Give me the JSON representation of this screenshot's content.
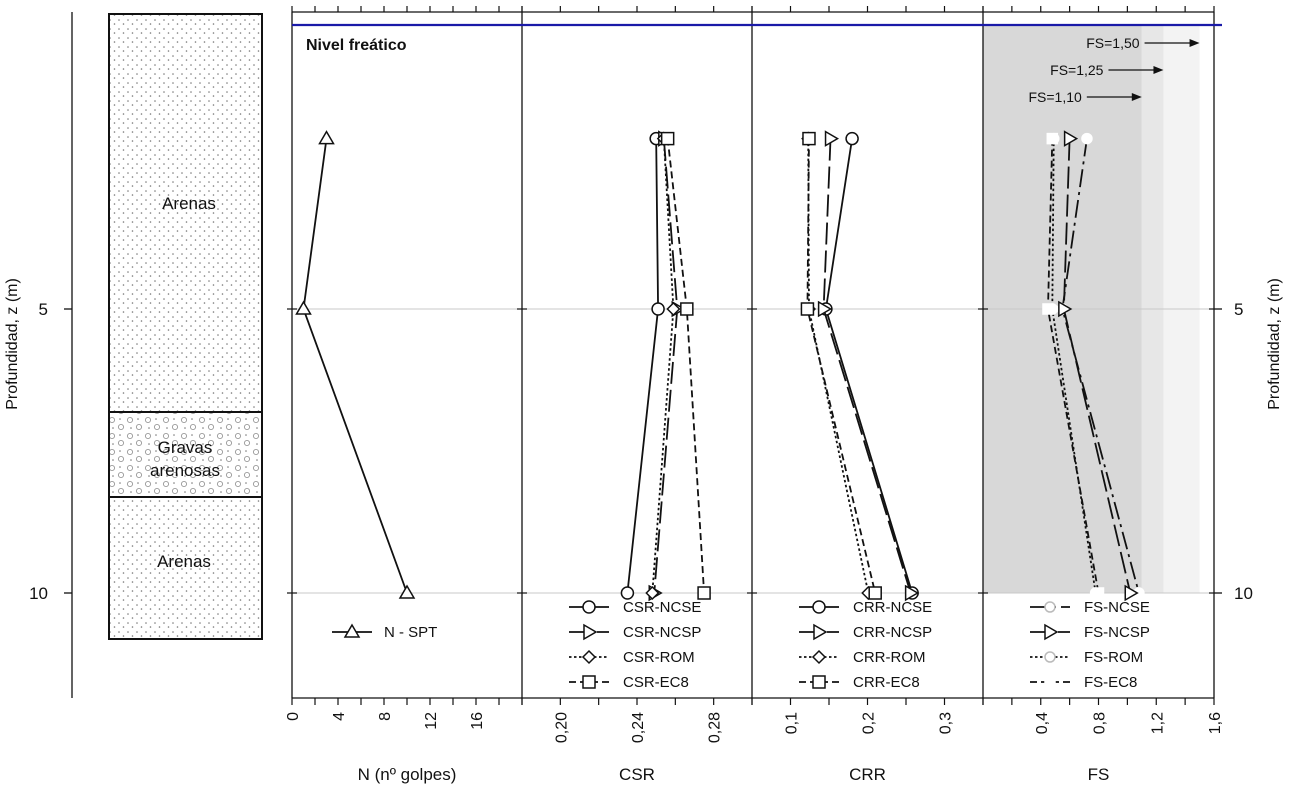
{
  "strings": {
    "ylabel_left": "Profundidad, z (m)",
    "ylabel_right": "Profundidad, z (m)",
    "nivel_freatico": "Nivel freático",
    "strata": [
      "Arenas",
      "Gravas",
      "arenosas",
      "Arenas"
    ]
  },
  "colors": {
    "water_table": "#1a1aa8",
    "fs_zone_dark": "#d8d8d8",
    "fs_zone_mid": "#e7e7e7",
    "fs_zone_light": "#f3f3f3",
    "grid": "#c8c8c8",
    "ink": "#111111"
  },
  "chart_data": [
    {
      "type": "line",
      "panel": "N",
      "xlabel": "N (nº golpes)",
      "xlim": [
        0,
        20
      ],
      "ticks": [
        "0",
        "4",
        "8",
        "12",
        "16"
      ],
      "tick_values": [
        0,
        4,
        8,
        12,
        16
      ],
      "depth_ticks": [
        "5",
        "10"
      ],
      "series": [
        {
          "name": "N - SPT",
          "marker": "triangle",
          "dash": "solid",
          "x": [
            3,
            1,
            10
          ],
          "z": [
            2.0,
            5.0,
            10.0
          ]
        }
      ]
    },
    {
      "type": "line",
      "panel": "CSR",
      "xlabel": "CSR",
      "xlim": [
        0.18,
        0.3
      ],
      "ticks": [
        "0,20",
        "0,24",
        "0,28"
      ],
      "tick_values": [
        0.2,
        0.24,
        0.28
      ],
      "series": [
        {
          "name": "CSR-NCSE",
          "marker": "circle",
          "dash": "solid",
          "x": [
            0.25,
            0.251,
            0.235
          ],
          "z": [
            2.0,
            5.0,
            10.0
          ]
        },
        {
          "name": "CSR-NCSP",
          "marker": "tri-right",
          "dash": "long",
          "x": [
            0.254,
            0.261,
            0.249
          ],
          "z": [
            2.0,
            5.0,
            10.0
          ]
        },
        {
          "name": "CSR-ROM",
          "marker": "diamond",
          "dash": "dot",
          "x": [
            0.254,
            0.259,
            0.248
          ],
          "z": [
            2.0,
            5.0,
            10.0
          ]
        },
        {
          "name": "CSR-EC8",
          "marker": "square",
          "dash": "dash",
          "x": [
            0.256,
            0.266,
            0.275
          ],
          "z": [
            2.0,
            5.0,
            10.0
          ]
        }
      ]
    },
    {
      "type": "line",
      "panel": "CRR",
      "xlabel": "CRR",
      "xlim": [
        0.05,
        0.35
      ],
      "ticks": [
        "0,1",
        "0,2",
        "0,3"
      ],
      "tick_values": [
        0.1,
        0.2,
        0.3
      ],
      "series": [
        {
          "name": "CRR-NCSE",
          "marker": "circle",
          "dash": "solid",
          "x": [
            0.18,
            0.146,
            0.258
          ],
          "z": [
            2.0,
            5.0,
            10.0
          ]
        },
        {
          "name": "CRR-NCSP",
          "marker": "tri-right",
          "dash": "long",
          "x": [
            0.152,
            0.143,
            0.256
          ],
          "z": [
            2.0,
            5.0,
            10.0
          ]
        },
        {
          "name": "CRR-ROM",
          "marker": "diamond",
          "dash": "dot",
          "x": [
            0.123,
            0.124,
            0.201
          ],
          "z": [
            2.0,
            5.0,
            10.0
          ]
        },
        {
          "name": "CRR-EC8",
          "marker": "square",
          "dash": "dash",
          "x": [
            0.124,
            0.122,
            0.21
          ],
          "z": [
            2.0,
            5.0,
            10.0
          ]
        }
      ]
    },
    {
      "type": "line",
      "panel": "FS",
      "xlabel": "FS",
      "xlim": [
        0.0,
        1.6
      ],
      "ticks": [
        "0,4",
        "0,8",
        "1,2",
        "1,6"
      ],
      "tick_values": [
        0.4,
        0.8,
        1.2,
        1.6
      ],
      "thresholds": [
        {
          "value": 1.1,
          "label": "FS=1,10"
        },
        {
          "value": 1.25,
          "label": "FS=1,25"
        },
        {
          "value": 1.5,
          "label": "FS=1,50"
        }
      ],
      "series": [
        {
          "name": "FS-NCSE",
          "marker": "circle-small",
          "dash": "longdash",
          "x": [
            0.72,
            0.55,
            1.08
          ],
          "z": [
            2.0,
            5.0,
            10.0
          ]
        },
        {
          "name": "FS-NCSP",
          "marker": "tri-right",
          "dash": "long",
          "x": [
            0.6,
            0.56,
            1.02
          ],
          "z": [
            2.0,
            5.0,
            10.0
          ]
        },
        {
          "name": "FS-ROM",
          "marker": "circle-small",
          "dash": "dot",
          "x": [
            0.49,
            0.48,
            0.78
          ],
          "z": [
            2.0,
            5.0,
            10.0
          ]
        },
        {
          "name": "FS-EC8",
          "marker": "square-small",
          "dash": "dash",
          "x": [
            0.48,
            0.45,
            0.8
          ],
          "z": [
            2.0,
            5.0,
            10.0
          ]
        }
      ]
    }
  ]
}
